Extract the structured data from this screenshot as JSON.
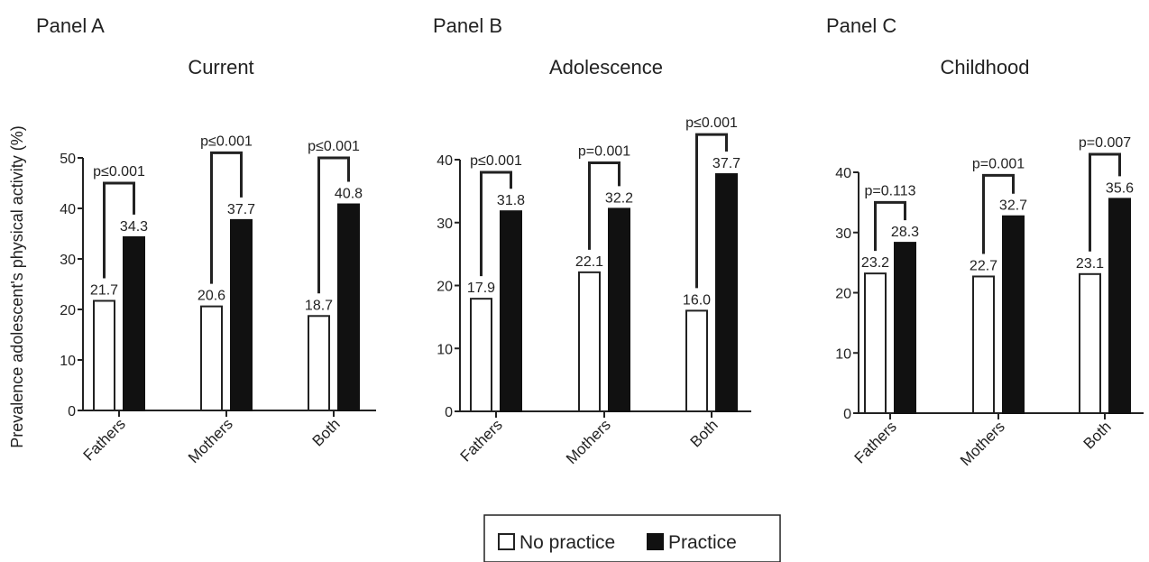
{
  "y_axis_label": "Prevalence adolescent's physical activity (%)",
  "legend": {
    "no_practice": "No practice",
    "practice": "Practice"
  },
  "colors": {
    "no_practice": "#ffffff",
    "practice": "#111111",
    "axis": "#222222"
  },
  "chart_data": [
    {
      "type": "bar",
      "panel": "Panel A",
      "title": "Current",
      "categories": [
        "Fathers",
        "Mothers",
        "Both"
      ],
      "series": [
        {
          "name": "No practice",
          "values": [
            21.7,
            20.6,
            18.7
          ]
        },
        {
          "name": "Practice",
          "values": [
            34.3,
            37.7,
            40.8
          ]
        }
      ],
      "value_labels": {
        "No practice": [
          "21.7",
          "20.6",
          "18.7"
        ],
        "Practice": [
          "34.3",
          "37.7",
          "40.8"
        ]
      },
      "p_values": [
        "p≤0.001",
        "p≤0.001",
        "p≤0.001"
      ],
      "bracket_levels": [
        45,
        51,
        50
      ],
      "ylim": [
        0,
        50
      ],
      "yticks": [
        0,
        10,
        20,
        30,
        40,
        50
      ],
      "ylabel": "Prevalence adolescent's physical activity (%)"
    },
    {
      "type": "bar",
      "panel": "Panel B",
      "title": "Adolescence",
      "categories": [
        "Fathers",
        "Mothers",
        "Both"
      ],
      "series": [
        {
          "name": "No practice",
          "values": [
            17.9,
            22.1,
            16.0
          ]
        },
        {
          "name": "Practice",
          "values": [
            31.8,
            32.2,
            37.7
          ]
        }
      ],
      "value_labels": {
        "No practice": [
          "17.9",
          "22.1",
          "16.0"
        ],
        "Practice": [
          "31.8",
          "32.2",
          "37.7"
        ]
      },
      "p_values": [
        "p≤0.001",
        "p=0.001",
        "p≤0.001"
      ],
      "bracket_levels": [
        38,
        39.5,
        44
      ],
      "ylim": [
        0,
        40
      ],
      "yticks": [
        0,
        10,
        20,
        30,
        40
      ],
      "ylabel": ""
    },
    {
      "type": "bar",
      "panel": "Panel C",
      "title": "Childhood",
      "categories": [
        "Fathers",
        "Mothers",
        "Both"
      ],
      "series": [
        {
          "name": "No practice",
          "values": [
            23.2,
            22.7,
            23.1
          ]
        },
        {
          "name": "Practice",
          "values": [
            28.3,
            32.7,
            35.6
          ]
        }
      ],
      "value_labels": {
        "No practice": [
          "23.2",
          "22.7",
          "23.1"
        ],
        "Practice": [
          "28.3",
          "32.7",
          "35.6"
        ]
      },
      "p_values": [
        "p=0.113",
        "p=0.001",
        "p=0.007"
      ],
      "bracket_levels": [
        35,
        39.5,
        43
      ],
      "ylim": [
        0,
        40
      ],
      "yticks": [
        0,
        10,
        20,
        30,
        40
      ],
      "ylabel": ""
    }
  ]
}
